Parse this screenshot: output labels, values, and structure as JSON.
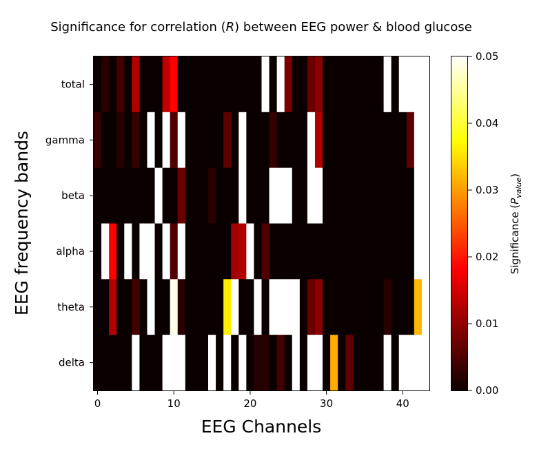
{
  "chart_data": {
    "type": "heatmap",
    "title_parts": [
      "Significance for correlation (",
      "R",
      ") between EEG power & blood glucose"
    ],
    "xlabel": "EEG Channels",
    "ylabel": "EEG frequency bands",
    "x_ticks": [
      "0",
      "10",
      "20",
      "30",
      "40"
    ],
    "x_tick_values": [
      0,
      10,
      20,
      30,
      40
    ],
    "xlim": [
      -0.5,
      43.5
    ],
    "row_labels": [
      "total",
      "gamma",
      "beta",
      "alpha",
      "theta",
      "delta"
    ],
    "colorbar": {
      "colormap": "hot",
      "range": [
        0,
        0.05
      ],
      "ticks": [
        "0.00",
        "0.01",
        "0.02",
        "0.03",
        "0.04",
        "0.05"
      ],
      "tick_values": [
        0,
        0.01,
        0.02,
        0.03,
        0.04,
        0.05
      ],
      "label_main": "Significance (",
      "label_italic": "P",
      "label_sub": "value",
      "label_close": ")"
    },
    "values": [
      [
        0.0,
        0.002,
        0.0,
        0.004,
        0.0,
        0.012,
        0.0,
        0.0,
        0.0,
        0.013,
        0.018,
        0.0,
        0.0,
        0.0,
        0.0,
        0.0,
        0.0,
        0.0,
        0.0,
        0.0,
        0.0,
        0.0,
        0.05,
        0.0,
        0.05,
        0.008,
        0.0,
        0.0,
        0.007,
        0.009,
        0.0,
        0.0,
        0.0,
        0.0,
        0.0,
        0.0,
        0.0,
        0.0,
        0.05,
        0.0,
        0.05,
        0.05,
        0.05,
        0.05
      ],
      [
        0.003,
        0.0,
        0.0,
        0.002,
        0.0,
        0.003,
        0.0,
        0.05,
        0.0,
        0.05,
        0.005,
        0.05,
        0.0,
        0.0,
        0.0,
        0.0,
        0.0,
        0.006,
        0.0,
        0.05,
        0.0,
        0.0,
        0.0,
        0.003,
        0.0,
        0.0,
        0.0,
        0.0,
        0.05,
        0.012,
        0.0,
        0.0,
        0.0,
        0.0,
        0.0,
        0.0,
        0.0,
        0.0,
        0.0,
        0.0,
        0.0,
        0.006,
        0.05,
        0.05
      ],
      [
        0.0,
        0.0,
        0.0,
        0.0,
        0.0,
        0.0,
        0.0,
        0.0,
        0.05,
        0.0,
        0.0,
        0.007,
        0.0,
        0.0,
        0.0,
        0.002,
        0.0,
        0.0,
        0.0,
        0.05,
        0.0,
        0.0,
        0.0,
        0.05,
        0.05,
        0.05,
        0.0,
        0.0,
        0.05,
        0.05,
        0.0,
        0.0,
        0.0,
        0.0,
        0.0,
        0.0,
        0.0,
        0.0,
        0.0,
        0.0,
        0.0,
        0.0,
        0.05,
        0.05
      ],
      [
        0.0,
        0.05,
        0.018,
        0.0,
        0.05,
        0.0,
        0.05,
        0.05,
        0.0,
        0.05,
        0.005,
        0.05,
        0.0,
        0.0,
        0.0,
        0.0,
        0.0,
        0.0,
        0.011,
        0.012,
        0.05,
        0.0,
        0.005,
        0.0,
        0.0,
        0.0,
        0.0,
        0.0,
        0.0,
        0.0,
        0.0,
        0.0,
        0.0,
        0.0,
        0.0,
        0.0,
        0.0,
        0.0,
        0.0,
        0.0,
        0.0,
        0.0,
        0.05,
        0.05
      ],
      [
        0.0,
        0.0,
        0.012,
        0.0,
        0.0,
        0.004,
        0.0,
        0.05,
        0.0,
        0.0,
        0.049,
        0.002,
        0.0,
        0.0,
        0.0,
        0.0,
        0.0,
        0.036,
        0.05,
        0.0,
        0.0,
        0.05,
        0.0,
        0.05,
        0.05,
        0.05,
        0.05,
        0.0,
        0.007,
        0.009,
        0.0,
        0.0,
        0.0,
        0.0,
        0.0,
        0.0,
        0.0,
        0.0,
        0.002,
        0.0,
        0.0,
        0.0,
        0.032,
        0.05
      ],
      [
        0.0,
        0.0,
        0.0,
        0.0,
        0.0,
        0.05,
        0.0,
        0.0,
        0.0,
        0.05,
        0.05,
        0.05,
        0.0,
        0.0,
        0.0,
        0.05,
        0.0,
        0.05,
        0.0,
        0.05,
        0.0,
        0.002,
        0.002,
        0.0,
        0.004,
        0.0,
        0.05,
        0.0,
        0.05,
        0.05,
        0.0,
        0.031,
        0.0,
        0.006,
        0.0,
        0.0,
        0.0,
        0.0,
        0.05,
        0.0,
        0.05,
        0.05,
        0.05,
        0.05
      ]
    ]
  }
}
